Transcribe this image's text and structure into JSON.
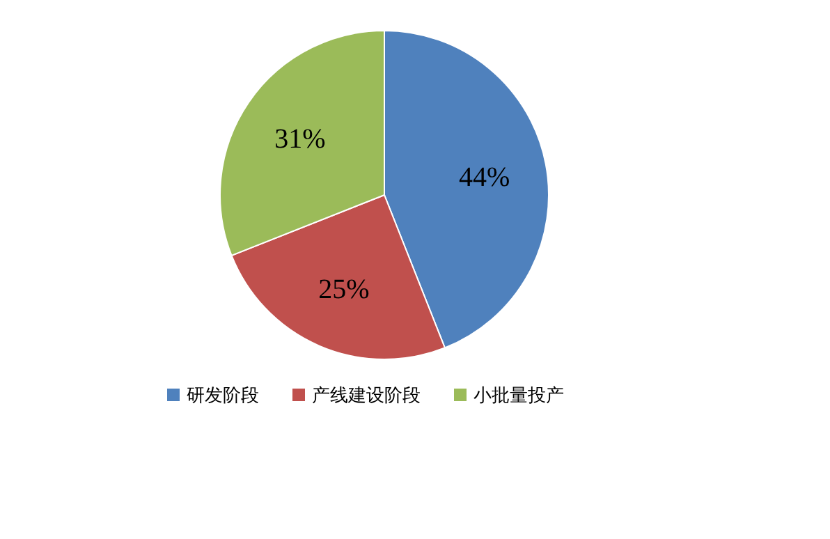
{
  "chart_data": {
    "type": "pie",
    "categories": [
      "研发阶段",
      "产线建设阶段",
      "小批量投产"
    ],
    "values": [
      44,
      25,
      31
    ],
    "colors": [
      "#4f81bd",
      "#c0504d",
      "#9bbb59"
    ],
    "value_labels": [
      "44%",
      "25%",
      "31%"
    ],
    "legend": "bottom"
  }
}
